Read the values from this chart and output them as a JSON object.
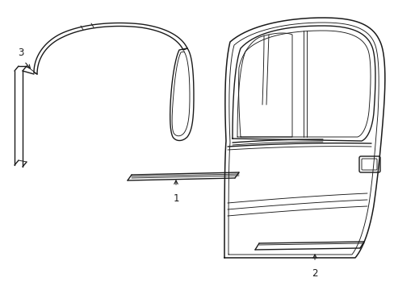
{
  "bg_color": "#ffffff",
  "line_color": "#1a1a1a",
  "lw": 1.0,
  "lw_thin": 0.65,
  "lw_thick": 1.1,
  "fig_width": 4.89,
  "fig_height": 3.6,
  "label_fontsize": 8.5
}
